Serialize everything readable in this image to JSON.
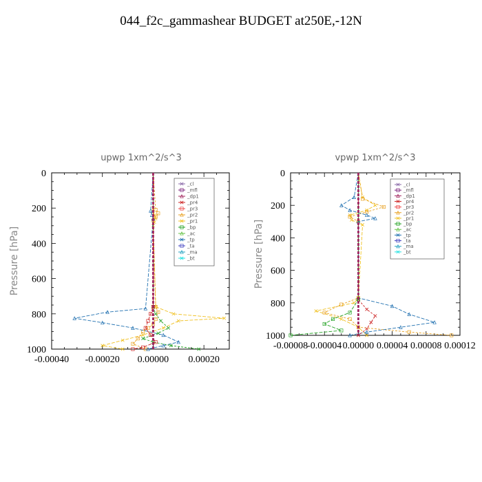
{
  "page": {
    "title": "044_f2c_gammashear  BUDGET at250E,-12N"
  },
  "legend_labels": [
    "_cl",
    "_mfl",
    "_dp1",
    "_pr4",
    "_pr3",
    "_pr2",
    "_pr1",
    "_bp",
    "_ac",
    "_tp",
    "_ta",
    "_ma",
    "_bt"
  ],
  "series_colors": {
    "_cl": "#8a6aa8",
    "_mfl": "#7a1f7a",
    "_dp1": "#a0205a",
    "_pr4": "#cc2222",
    "_pr3": "#ee4444",
    "_pr2": "#e8a020",
    "_pr1": "#f0c020",
    "_bp": "#20a020",
    "_ac": "#60c040",
    "_tp": "#2070b0",
    "_ta": "#4040c0",
    "_ma": "#20a0c0",
    "_bt": "#20e0e0"
  },
  "chart_data": [
    {
      "type": "line",
      "title": "upwp   1xm^2/s^3",
      "ylabel": "Pressure [hPa]",
      "xlim": [
        -0.0004,
        0.0003
      ],
      "ylim": [
        1000,
        0
      ],
      "xticks": [
        -0.0004,
        -0.0002,
        0.0,
        0.0002
      ],
      "xtick_labels": [
        "-0.00040",
        "-0.00020",
        "0.00000",
        "0.00020"
      ],
      "yticks": [
        0,
        200,
        400,
        600,
        800,
        1000
      ],
      "ytick_labels": [
        "0",
        "200",
        "400",
        "600",
        "800",
        "1000"
      ],
      "legend_position": "top-right",
      "series": [
        {
          "name": "_pr1",
          "x": [
            0.0,
            0.0,
            0.0,
            5e-06,
            1e-05,
            5e-06,
            0.0,
            1e-05,
            8e-05,
            0.00028,
            0.0001,
            4e-05,
            -4e-05,
            -0.00012,
            -0.0002,
            -0.00012
          ],
          "y": [
            0,
            200,
            220,
            240,
            260,
            280,
            300,
            760,
            800,
            825,
            840,
            880,
            920,
            950,
            980,
            1000
          ]
        },
        {
          "name": "_pr2",
          "x": [
            0.0,
            1e-05,
            2e-05,
            1e-05,
            0.0,
            1e-05,
            2e-05,
            1e-05,
            0.0,
            -2e-05,
            -4e-05,
            -6e-05,
            -8e-05,
            -3e-05
          ],
          "y": [
            0,
            210,
            230,
            250,
            270,
            760,
            790,
            830,
            860,
            880,
            900,
            940,
            970,
            1000
          ]
        },
        {
          "name": "_tp",
          "x": [
            0.0,
            -1e-05,
            -5e-06,
            0.0,
            -3e-05,
            -0.00018,
            -0.00031,
            -0.0002,
            -8e-05,
            4e-05,
            0.0001,
            4e-05,
            -2e-05
          ],
          "y": [
            0,
            215,
            240,
            260,
            770,
            790,
            825,
            850,
            880,
            920,
            960,
            980,
            1000
          ]
        },
        {
          "name": "_bp",
          "x": [
            0.0,
            0.0,
            1e-05,
            3e-05,
            6e-05,
            2e-05,
            -4e-05,
            0.0,
            7e-05,
            0.00018
          ],
          "y": [
            0,
            760,
            800,
            840,
            880,
            910,
            940,
            960,
            980,
            1000
          ]
        },
        {
          "name": "_pr4",
          "x": [
            0.0,
            0.0,
            -1e-05,
            -2e-05,
            -3e-05,
            -1e-05,
            1e-05,
            -4e-05,
            -8e-05
          ],
          "y": [
            0,
            760,
            800,
            840,
            880,
            920,
            960,
            990,
            1000
          ]
        },
        {
          "name": "_mfl",
          "x": [
            0.0,
            0.0
          ],
          "y": [
            0,
            1000
          ]
        },
        {
          "name": "_dp1",
          "x": [
            0.0,
            0.0
          ],
          "y": [
            0,
            1000
          ]
        }
      ]
    },
    {
      "type": "line",
      "title": "vpwp   1xm^2/s^3",
      "ylabel": "Pressure [hPa]",
      "xlim": [
        -8e-05,
        0.00012
      ],
      "ylim": [
        1000,
        0
      ],
      "xticks": [
        -8e-05,
        -4e-05,
        0.0,
        4e-05,
        8e-05,
        0.00012
      ],
      "xtick_labels": [
        "-0.00008",
        "-0.00004",
        "0.00000",
        "0.00004",
        "0.00008",
        "0.00012"
      ],
      "yticks": [
        0,
        200,
        400,
        600,
        800,
        1000
      ],
      "ytick_labels": [
        "0",
        "200",
        "400",
        "600",
        "800",
        "1000"
      ],
      "legend_position": "top-right",
      "series": [
        {
          "name": "_pr1",
          "x": [
            0.0,
            5e-06,
            2e-05,
            1e-05,
            -1e-05,
            -8e-06,
            5e-06,
            0.0,
            -5e-06,
            -5e-05,
            -2e-05,
            0.0,
            1e-05
          ],
          "y": [
            0,
            150,
            200,
            230,
            260,
            290,
            320,
            770,
            800,
            850,
            900,
            950,
            1000
          ]
        },
        {
          "name": "_pr2",
          "x": [
            0.0,
            5e-06,
            3e-05,
            1e-05,
            -1e-05,
            0.0,
            0.0,
            -2e-05,
            -4e-05,
            -1e-05,
            0.0,
            6e-05,
            0.00011
          ],
          "y": [
            0,
            160,
            210,
            240,
            270,
            300,
            770,
            810,
            860,
            900,
            950,
            980,
            1000
          ]
        },
        {
          "name": "_tp",
          "x": [
            0.0,
            -5e-06,
            -2e-05,
            -1e-05,
            1e-05,
            2e-05,
            0.0,
            0.0,
            4e-05,
            6e-05,
            9e-05,
            5e-05,
            1e-05,
            -1e-05
          ],
          "y": [
            0,
            150,
            200,
            230,
            260,
            280,
            300,
            770,
            820,
            870,
            920,
            950,
            980,
            1000
          ]
        },
        {
          "name": "_pr4",
          "x": [
            0.0,
            0.0,
            1e-05,
            2e-05,
            1.5e-05,
            1e-05,
            0.0
          ],
          "y": [
            0,
            780,
            840,
            880,
            920,
            960,
            1000
          ]
        },
        {
          "name": "_bp",
          "x": [
            0.0,
            0.0,
            -1e-05,
            -3e-05,
            -4e-05,
            -2e-05,
            -8e-05
          ],
          "y": [
            0,
            780,
            860,
            900,
            930,
            970,
            1000
          ]
        },
        {
          "name": "_mfl",
          "x": [
            0.0,
            0.0
          ],
          "y": [
            0,
            1000
          ]
        },
        {
          "name": "_dp1",
          "x": [
            0.0,
            0.0
          ],
          "y": [
            0,
            1000
          ]
        }
      ]
    }
  ]
}
